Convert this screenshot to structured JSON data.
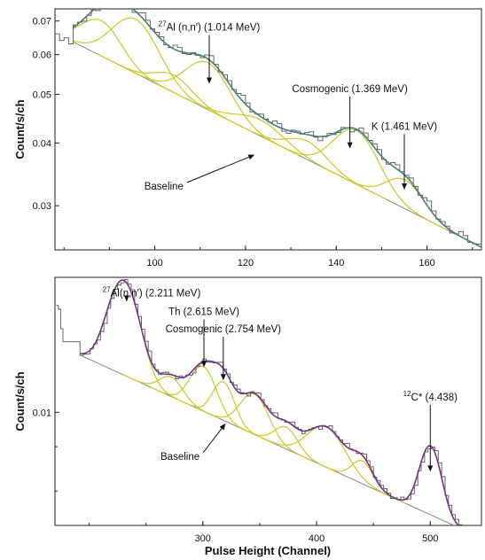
{
  "chart_data": [
    {
      "type": "line",
      "ylabel": "Count/s/ch",
      "xlabel": "",
      "y_scale": "log",
      "xlim": [
        78,
        172
      ],
      "ylim": [
        0.0245,
        0.074
      ],
      "x_ticks": [
        {
          "value": 100,
          "label": "100"
        },
        {
          "value": 120,
          "label": "120"
        },
        {
          "value": 140,
          "label": "140"
        },
        {
          "value": 160,
          "label": "160"
        }
      ],
      "y_ticks": [
        {
          "value": 0.03,
          "label": "0.03"
        },
        {
          "value": 0.04,
          "label": "0.04"
        },
        {
          "value": 0.05,
          "label": "0.05"
        },
        {
          "value": 0.06,
          "label": "0.06"
        },
        {
          "value": 0.07,
          "label": "0.07"
        }
      ],
      "baseline": {
        "x": [
          82,
          172
        ],
        "y": [
          0.0636,
          0.0248
        ]
      },
      "peaks": [
        {
          "center": 88,
          "amplitude": 0.0105,
          "sigma": 4.3
        },
        {
          "center": 95.5,
          "amplitude": 0.0155,
          "sigma": 5.0
        },
        {
          "center": 104,
          "amplitude": 0.0042,
          "sigma": 4.0
        },
        {
          "center": 111.5,
          "amplitude": 0.0112,
          "sigma": 4.8
        },
        {
          "center": 123,
          "amplitude": 0.0032,
          "sigma": 5.2
        },
        {
          "center": 133.5,
          "amplitude": 0.0033,
          "sigma": 4.2
        },
        {
          "center": 144.2,
          "amplitude": 0.0093,
          "sigma": 4.8
        },
        {
          "center": 155,
          "amplitude": 0.0042,
          "sigma": 4.0
        }
      ],
      "data_start": {
        "x": [
          78,
          79,
          80,
          81
        ],
        "y": [
          0.066,
          0.064,
          0.0648,
          0.063
        ]
      },
      "data_end": {
        "x": [
          168,
          169,
          170,
          171,
          172
        ],
        "y": [
          0.0246,
          0.0244,
          0.0246,
          0.0245,
          0.0247
        ]
      },
      "annotations": [
        {
          "id": "al",
          "sup": "27",
          "text": "Al (n,n′) (1.014 MeV)",
          "arrow_to": [
            112,
            0.0525
          ],
          "text_at": [
            112,
            0.067
          ]
        },
        {
          "id": "cosmo",
          "sup": "",
          "text": "Cosmogenic (1.369 MeV)",
          "arrow_to": [
            143,
            0.039
          ],
          "text_at": [
            143,
            0.0505
          ]
        },
        {
          "id": "k",
          "sup": "",
          "text": "K (1.461 MeV)",
          "arrow_to": [
            155,
            0.0323
          ],
          "text_at": [
            155,
            0.0425
          ]
        },
        {
          "id": "base",
          "sup": "",
          "text": "Baseline",
          "arrow_to": [
            122,
            0.0379
          ],
          "text_at": [
            102,
            0.0323
          ]
        }
      ],
      "colors": {
        "measured": "#2a6fd0",
        "fit": "#5a8a3a",
        "components": "#cccc33",
        "baseline": "#888888",
        "plateau": "#555555"
      }
    },
    {
      "type": "line",
      "ylabel": "Count/s/ch",
      "xlabel": "Pulse Height (Channel)",
      "y_scale": "log",
      "xlim": [
        170,
        545
      ],
      "ylim": [
        0.0048,
        0.024
      ],
      "x_ticks": [
        {
          "value": 300,
          "label": "300"
        },
        {
          "value": 400,
          "label": "400"
        },
        {
          "value": 500,
          "label": "500"
        }
      ],
      "y_ticks": [
        {
          "value": 0.01,
          "label": "0.01"
        }
      ],
      "baseline": {
        "x": [
          192,
          540
        ],
        "y": [
          0.0145,
          0.0045
        ]
      },
      "peaks": [
        {
          "center": 230,
          "amplitude": 0.0108,
          "sigma": 13
        },
        {
          "center": 272,
          "amplitude": 0.0015,
          "sigma": 10
        },
        {
          "center": 300,
          "amplitude": 0.0034,
          "sigma": 11
        },
        {
          "center": 318,
          "amplitude": 0.0027,
          "sigma": 9
        },
        {
          "center": 345,
          "amplitude": 0.0026,
          "sigma": 12
        },
        {
          "center": 373,
          "amplitude": 0.0012,
          "sigma": 10
        },
        {
          "center": 408,
          "amplitude": 0.0021,
          "sigma": 16
        },
        {
          "center": 440,
          "amplitude": 0.001,
          "sigma": 9
        },
        {
          "center": 500,
          "amplitude": 0.0029,
          "sigma": 9
        }
      ],
      "data_start": {
        "x": [
          171,
          173,
          175,
          177
        ],
        "y": [
          0.02,
          0.0195,
          0.0172,
          0.0158
        ]
      },
      "data_end": {
        "x": [
          538,
          540,
          542,
          544
        ],
        "y": [
          0.0046,
          0.00465,
          0.0047,
          0.0047
        ]
      },
      "annotations": [
        {
          "id": "al2",
          "sup": "27",
          "text": "Al(n,n′) (2.211 MeV)",
          "arrow_to": [
            233,
            0.0205
          ],
          "text_at": [
            255,
            0.0212
          ]
        },
        {
          "id": "th",
          "sup": "",
          "text": "Th (2.615 MeV)",
          "arrow_to": [
            301,
            0.0134
          ],
          "text_at": [
            301,
            0.0188
          ]
        },
        {
          "id": "cosmo2",
          "sup": "",
          "text": "Cosmogenic (2.754 MeV)",
          "arrow_to": [
            318,
            0.0123
          ],
          "text_at": [
            318,
            0.0168
          ]
        },
        {
          "id": "c12",
          "sup": "12",
          "text": "C* (4.438)",
          "arrow_to": [
            500,
            0.0068
          ],
          "text_at": [
            500,
            0.0108
          ]
        },
        {
          "id": "base2",
          "sup": "",
          "text": "Baseline",
          "arrow_to": [
            320,
            0.0093
          ],
          "text_at": [
            280,
            0.00735
          ]
        }
      ],
      "colors": {
        "measured": "#cc2233",
        "fit": "#3344cc",
        "components": "#cccc33",
        "baseline": "#888888",
        "plateau": "#555555"
      }
    }
  ]
}
